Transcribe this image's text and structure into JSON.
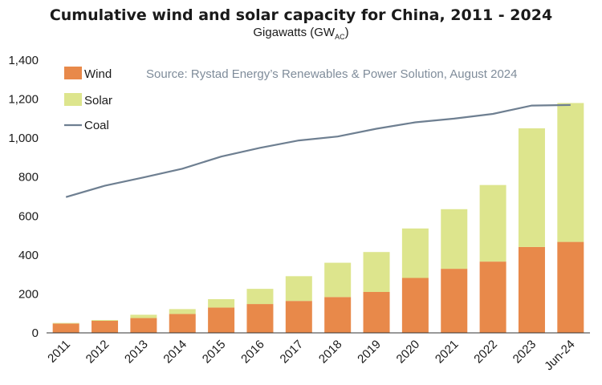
{
  "chart_data": {
    "type": "bar",
    "title": "Cumulative wind and solar capacity for China, 2011 - 2024",
    "subtitle": "Gigawatts (GW",
    "subtitle_sub": "AC",
    "subtitle_end": ")",
    "source": "Source: Rystad Energy’s Renewables & Power Solution, August 2024",
    "categories": [
      "2011",
      "2012",
      "2013",
      "2014",
      "2015",
      "2016",
      "2017",
      "2018",
      "2019",
      "2020",
      "2021",
      "2022",
      "2023",
      "Jun-24"
    ],
    "ylim": [
      0,
      1400
    ],
    "yticks": [
      "0",
      "200",
      "400",
      "600",
      "800",
      "1,000",
      "1,200",
      "1,400"
    ],
    "stacked": true,
    "legend_position": "top-left",
    "series": [
      {
        "name": "Wind",
        "type": "bar",
        "color": "#E8894A",
        "values": [
          48,
          62,
          76,
          97,
          130,
          148,
          164,
          184,
          210,
          282,
          329,
          366,
          441,
          467
        ]
      },
      {
        "name": "Solar",
        "type": "bar",
        "color": "#DDE58D",
        "values": [
          3,
          4,
          17,
          25,
          43,
          78,
          127,
          176,
          205,
          254,
          306,
          393,
          609,
          713
        ]
      },
      {
        "name": "Coal",
        "type": "line",
        "color": "#6E7F91",
        "values": [
          697,
          755,
          798,
          843,
          905,
          950,
          988,
          1008,
          1048,
          1081,
          1100,
          1124,
          1167,
          1170
        ]
      }
    ],
    "source_color": "#7F8C9A"
  }
}
